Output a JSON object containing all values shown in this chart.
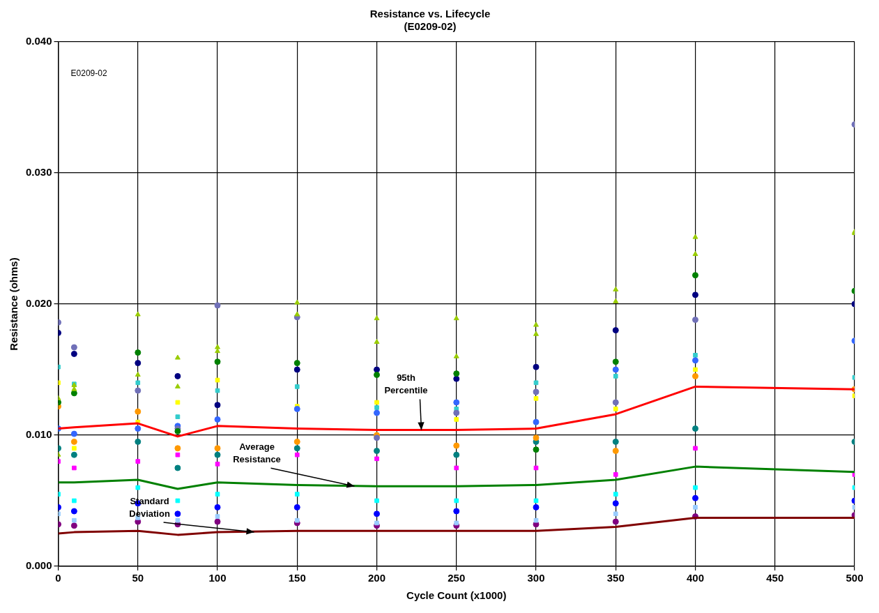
{
  "chart_data": {
    "type": "scatter",
    "title": "Resistance vs. Lifecycle",
    "subtitle": "(E0209-02)",
    "xlabel": "Cycle Count (x1000)",
    "ylabel": "Resistance (ohms)",
    "x": [
      0,
      10,
      50,
      75,
      100,
      150,
      200,
      250,
      300,
      350,
      400,
      500
    ],
    "xlim": [
      0,
      500
    ],
    "xticks": [
      0,
      50,
      100,
      150,
      200,
      250,
      300,
      350,
      400,
      450,
      500
    ],
    "ylim": [
      0,
      0.04
    ],
    "yticks": [
      {
        "value": 0,
        "label": "0.000"
      },
      {
        "value": 0.01,
        "label": "0.010"
      },
      {
        "value": 0.02,
        "label": "0.020"
      },
      {
        "value": 0.03,
        "label": "0.030"
      },
      {
        "value": 0.04,
        "label": "0.040"
      }
    ],
    "grid": true,
    "legend": false,
    "series": [
      {
        "color": "#99cc00",
        "marker": "triangle",
        "values": [
          0.0128,
          0.0138,
          0.0192,
          0.0159,
          0.0167,
          0.0201,
          0.0189,
          0.0189,
          0.0184,
          0.0211,
          0.0251,
          0.0255
        ]
      },
      {
        "color": "#99cc00",
        "marker": "triangle",
        "values": [
          0.0085,
          0.0135,
          0.0146,
          0.0137,
          0.0164,
          0.0192,
          0.0171,
          0.016,
          0.0177,
          0.0202,
          0.0238,
          0.0254
        ]
      },
      {
        "color": "#008000",
        "marker": "circle",
        "values": [
          0.0125,
          0.0132,
          0.0163,
          0.0103,
          0.0156,
          0.0155,
          0.0146,
          0.0147,
          0.0089,
          0.0156,
          0.0222,
          0.021
        ]
      },
      {
        "color": "#000080",
        "marker": "circle",
        "values": [
          0.0178,
          0.0162,
          0.0155,
          0.0145,
          0.0123,
          0.015,
          0.015,
          0.0143,
          0.0152,
          0.018,
          0.0207,
          0.02
        ]
      },
      {
        "color": "#7070b8",
        "marker": "circle",
        "values": [
          0.0186,
          0.0167,
          0.0134,
          0.0105,
          0.0199,
          0.019,
          0.0098,
          0.0117,
          0.0133,
          0.0125,
          0.0188,
          0.0337
        ]
      },
      {
        "color": "#3366ff",
        "marker": "circle",
        "values": [
          0.0105,
          0.0101,
          0.0105,
          0.0107,
          0.0112,
          0.012,
          0.0117,
          0.0125,
          0.011,
          0.015,
          0.0157,
          0.0172
        ]
      },
      {
        "color": "#33cccc",
        "marker": "square",
        "values": [
          0.0152,
          0.0139,
          0.014,
          0.0114,
          0.0134,
          0.0137,
          0.0121,
          0.012,
          0.014,
          0.0145,
          0.0161,
          0.0144
        ]
      },
      {
        "color": "#ffff00",
        "marker": "square",
        "values": [
          0.014,
          0.009,
          0.011,
          0.0125,
          0.0142,
          0.0122,
          0.0125,
          0.0112,
          0.0128,
          0.012,
          0.015,
          0.013
        ]
      },
      {
        "color": "#ff9900",
        "marker": "circle",
        "values": [
          0.0122,
          0.0095,
          0.0118,
          0.009,
          0.009,
          0.0095,
          0.01,
          0.0092,
          0.0098,
          0.0088,
          0.0145,
          0.0135
        ]
      },
      {
        "color": "#ff00ff",
        "marker": "square",
        "values": [
          0.008,
          0.0075,
          0.008,
          0.0085,
          0.0078,
          0.0085,
          0.0082,
          0.0075,
          0.0075,
          0.007,
          0.009,
          0.007
        ]
      },
      {
        "color": "#008080",
        "marker": "circle",
        "values": [
          0.009,
          0.0085,
          0.0095,
          0.0075,
          0.0085,
          0.009,
          0.0088,
          0.0085,
          0.0095,
          0.0095,
          0.0105,
          0.0095
        ]
      },
      {
        "color": "#00ffff",
        "marker": "square",
        "values": [
          0.0055,
          0.005,
          0.006,
          0.005,
          0.0055,
          0.0055,
          0.005,
          0.005,
          0.005,
          0.0055,
          0.006,
          0.006
        ]
      },
      {
        "color": "#99ccff",
        "marker": "square",
        "values": [
          0.004,
          0.0035,
          0.0037,
          0.0035,
          0.0038,
          0.0035,
          0.0033,
          0.0033,
          0.0035,
          0.004,
          0.0045,
          0.0045
        ]
      },
      {
        "color": "#0000ff",
        "marker": "circle",
        "values": [
          0.0045,
          0.0042,
          0.0048,
          0.004,
          0.0045,
          0.0045,
          0.004,
          0.0042,
          0.0045,
          0.0048,
          0.0052,
          0.005
        ]
      },
      {
        "color": "#800080",
        "marker": "circle",
        "values": [
          0.0032,
          0.0031,
          0.0034,
          0.0032,
          0.0034,
          0.0033,
          0.0031,
          0.0031,
          0.0032,
          0.0034,
          0.0038,
          0.0039
        ]
      },
      {
        "type": "line",
        "color": "#ff0000",
        "marker": "none",
        "values": [
          0.0105,
          0.0106,
          0.0109,
          0.0099,
          0.0107,
          0.0105,
          0.0104,
          0.0104,
          0.0105,
          0.0116,
          0.0137,
          0.0135
        ]
      },
      {
        "type": "line",
        "color": "#008000",
        "marker": "none",
        "values": [
          0.0064,
          0.0064,
          0.0066,
          0.0059,
          0.0064,
          0.0062,
          0.0061,
          0.0061,
          0.0062,
          0.0066,
          0.0076,
          0.0072
        ]
      },
      {
        "type": "line",
        "color": "#800000",
        "marker": "none",
        "values": [
          0.0025,
          0.0026,
          0.0027,
          0.0024,
          0.0026,
          0.0027,
          0.0027,
          0.0027,
          0.0027,
          0.003,
          0.0037,
          0.0037
        ]
      }
    ],
    "annotations": [
      "E0209-02",
      {
        "text": "95th Percentile",
        "x": 228,
        "y": 0.0104
      },
      {
        "text": "Average Resistance",
        "x": 186,
        "y": 0.0061
      },
      {
        "text": "Standard Deviation",
        "x": 123,
        "y": 0.0026
      }
    ]
  }
}
